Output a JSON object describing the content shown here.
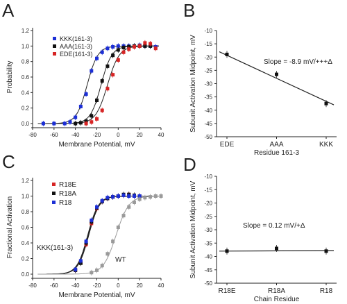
{
  "chart_data": [
    {
      "panel": "A",
      "type": "scatter",
      "xlabel": "Membrane Potential, mV",
      "ylabel": "Probability",
      "xlim": [
        -80,
        40
      ],
      "ylim": [
        0,
        1.2
      ],
      "xticks": [
        -80,
        -60,
        -40,
        -20,
        0,
        20,
        40
      ],
      "yticks": [
        0.0,
        0.2,
        0.4,
        0.6,
        0.8,
        1.0,
        1.2
      ],
      "legend_position": "top-left",
      "series": [
        {
          "name": "KKK(161-3)",
          "color": "#1c2fd6",
          "midpoint": -29,
          "slope": 5,
          "x": [
            -70,
            -60,
            -50,
            -45,
            -40,
            -35,
            -30,
            -25,
            -20,
            -15,
            -10,
            -5,
            0,
            5,
            10,
            15,
            20,
            25,
            30,
            35
          ],
          "y": [
            0.0,
            0.0,
            0.0,
            0.02,
            0.08,
            0.22,
            0.38,
            0.68,
            0.84,
            0.92,
            0.97,
            0.99,
            1.0,
            1.0,
            1.0,
            1.0,
            1.01,
            1.0,
            1.0,
            0.99
          ]
        },
        {
          "name": "AAA(161-3)",
          "color": "#111111",
          "midpoint": -16,
          "slope": 5,
          "x": [
            -40,
            -35,
            -30,
            -25,
            -20,
            -15,
            -10,
            -5,
            0,
            5,
            10,
            15,
            20,
            25,
            30
          ],
          "y": [
            0.0,
            0.01,
            0.03,
            0.1,
            0.3,
            0.55,
            0.74,
            0.88,
            0.95,
            0.98,
            0.99,
            1.0,
            1.0,
            1.0,
            1.0
          ]
        },
        {
          "name": "EDE(161-3)",
          "color": "#d62424",
          "midpoint": -10,
          "slope": 5.5,
          "x": [
            -30,
            -25,
            -20,
            -15,
            -10,
            -5,
            0,
            5,
            10,
            15,
            20,
            25,
            30,
            35
          ],
          "y": [
            0.0,
            0.02,
            0.06,
            0.17,
            0.45,
            0.63,
            0.82,
            0.92,
            0.96,
            0.99,
            1.0,
            1.04,
            1.03,
            0.97
          ]
        }
      ]
    },
    {
      "panel": "B",
      "type": "scatter",
      "xlabel": "Residue 161-3",
      "ylabel": "Subunit Activation Midpoint, mV",
      "categories": [
        "EDE",
        "AAA",
        "KKK"
      ],
      "values": [
        -19,
        -26.5,
        -37.5
      ],
      "ylim": [
        -50,
        -10
      ],
      "yticks": [
        -10,
        -15,
        -20,
        -25,
        -30,
        -35,
        -40,
        -45,
        -50
      ],
      "fit_line": [
        -18,
        -38
      ],
      "annotation": "Slope = -8.9 mV/+++Δ"
    },
    {
      "panel": "C",
      "type": "scatter",
      "xlabel": "Membrane Potential, mV",
      "ylabel": "Fractional Activation",
      "xlim": [
        -80,
        40
      ],
      "ylim": [
        0,
        1.2
      ],
      "xticks": [
        -80,
        -60,
        -40,
        -20,
        0,
        20,
        40
      ],
      "yticks": [
        0.0,
        0.2,
        0.4,
        0.6,
        0.8,
        1.0,
        1.2
      ],
      "legend_position": "top-left",
      "curve_labels": [
        "KKK(161-3)",
        "WT"
      ],
      "series": [
        {
          "name": "R18E",
          "color": "#d62424",
          "midpoint": -28,
          "slope": 5,
          "x": [
            -40,
            -35,
            -30,
            -25,
            -20,
            -15,
            -10,
            -5,
            0,
            5,
            10,
            15,
            20
          ],
          "y": [
            0.05,
            0.15,
            0.38,
            0.65,
            0.84,
            0.93,
            0.97,
            0.99,
            1.0,
            1.01,
            1.02,
            1.0,
            1.0
          ]
        },
        {
          "name": "R18A",
          "color": "#111111",
          "midpoint": -27.5,
          "slope": 5,
          "x": [
            -40,
            -35,
            -30,
            -25,
            -20,
            -15,
            -10,
            -5,
            0,
            5,
            10,
            15,
            20
          ],
          "y": [
            0.05,
            0.14,
            0.4,
            0.67,
            0.85,
            0.93,
            0.97,
            0.99,
            1.0,
            1.02,
            1.02,
            1.01,
            1.0
          ]
        },
        {
          "name": "R18",
          "color": "#1c2fd6",
          "midpoint": -28.5,
          "slope": 5,
          "x": [
            -40,
            -35,
            -30,
            -25,
            -20,
            -15,
            -10,
            -5,
            0,
            5,
            10,
            15,
            20
          ],
          "y": [
            0.06,
            0.17,
            0.42,
            0.69,
            0.86,
            0.94,
            0.98,
            0.99,
            1.0,
            1.01,
            1.0,
            1.0,
            1.0
          ]
        },
        {
          "name": "WT",
          "color": "#9a9a9a",
          "midpoint": -2,
          "slope": 6,
          "x": [
            -25,
            -20,
            -15,
            -10,
            -5,
            0,
            5,
            10,
            15,
            20,
            25,
            30,
            35,
            40
          ],
          "y": [
            0.02,
            0.05,
            0.11,
            0.26,
            0.42,
            0.6,
            0.75,
            0.86,
            0.92,
            0.96,
            0.98,
            0.99,
            1.0,
            1.0
          ]
        }
      ]
    },
    {
      "panel": "D",
      "type": "scatter",
      "xlabel": "Chain Residue",
      "ylabel": "Subunit Activation Midpoint, mV",
      "categories": [
        "R18E",
        "R18A",
        "R18"
      ],
      "values": [
        -38,
        -37,
        -38
      ],
      "ylim": [
        -50,
        -10
      ],
      "yticks": [
        -10,
        -15,
        -20,
        -25,
        -30,
        -35,
        -40,
        -45,
        -50
      ],
      "fit_line": [
        -38,
        -37.8
      ],
      "annotation": "Slope = 0.12 mV/+Δ"
    }
  ]
}
